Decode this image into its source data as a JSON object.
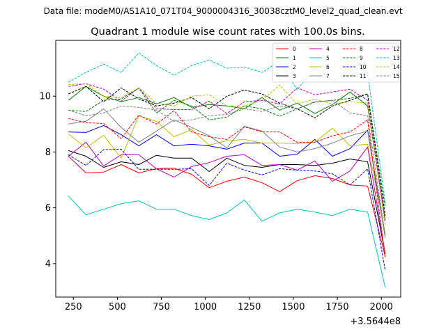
{
  "figure": {
    "suptitle": "Data file: modeM0/AS1A10_071T04_9000004316_30038cztM0_level2_quad_clean.evt",
    "title": "Quadrant 1 module wise count rates with 100.0s bins.",
    "x_offset_label": "+3.5644e8"
  },
  "chart_data": {
    "type": "line",
    "title": "Quadrant 1 module wise count rates with 100.0s bins.",
    "xlabel": "",
    "ylabel": "",
    "xlim": [
      150,
      2110
    ],
    "ylim": [
      2.8,
      12.0
    ],
    "x_ticks": [
      250,
      500,
      750,
      1000,
      1250,
      1500,
      1750,
      2000
    ],
    "x_tick_labels": [
      "250",
      "500",
      "750",
      "1000",
      "1250",
      "1500",
      "1750",
      "2000"
    ],
    "y_ticks": [
      4,
      6,
      8,
      10
    ],
    "y_tick_labels": [
      "4",
      "6",
      "8",
      "10"
    ],
    "grid": false,
    "legend_position": "top-right",
    "x": [
      222,
      322,
      422,
      522,
      622,
      722,
      822,
      922,
      1022,
      1122,
      1222,
      1322,
      1422,
      1522,
      1622,
      1722,
      1822,
      1922,
      2022
    ],
    "series": [
      {
        "name": "0",
        "color": "#ff0000",
        "dash": "solid",
        "values": [
          7.85,
          7.25,
          7.28,
          7.55,
          7.25,
          7.4,
          7.42,
          7.2,
          6.72,
          6.95,
          7.1,
          6.9,
          6.58,
          6.97,
          7.15,
          7.05,
          6.82,
          6.78,
          4.25
        ]
      },
      {
        "name": "1",
        "color": "#008000",
        "dash": "solid",
        "values": [
          9.85,
          10.35,
          10.0,
          9.8,
          9.95,
          9.72,
          9.95,
          9.6,
          9.7,
          9.65,
          9.55,
          9.95,
          9.5,
          9.75,
          9.38,
          9.7,
          10.15,
          9.65,
          5.55
        ]
      },
      {
        "name": "2",
        "color": "#0000ff",
        "dash": "solid",
        "values": [
          8.72,
          8.7,
          8.95,
          8.62,
          8.22,
          8.62,
          8.22,
          8.28,
          8.22,
          8.1,
          8.32,
          8.32,
          7.85,
          7.92,
          8.45,
          7.85,
          8.12,
          8.78,
          5.0
        ]
      },
      {
        "name": "3",
        "color": "#000000",
        "dash": "solid",
        "values": [
          8.05,
          7.85,
          7.45,
          7.65,
          7.55,
          7.88,
          7.78,
          7.78,
          7.3,
          7.78,
          7.52,
          7.45,
          7.55,
          7.55,
          7.52,
          7.6,
          7.75,
          7.65,
          4.35
        ]
      },
      {
        "name": "4",
        "color": "#bf00bf",
        "dash": "solid",
        "values": [
          7.85,
          8.35,
          7.5,
          7.9,
          7.9,
          7.4,
          7.1,
          7.48,
          7.62,
          7.85,
          7.9,
          7.52,
          7.55,
          7.35,
          7.68,
          6.95,
          7.32,
          8.18,
          4.35
        ]
      },
      {
        "name": "5",
        "color": "#00bfbf",
        "dash": "solid",
        "values": [
          6.42,
          5.75,
          5.95,
          6.15,
          6.25,
          5.95,
          5.95,
          5.72,
          5.58,
          5.82,
          6.28,
          5.52,
          5.82,
          5.95,
          5.85,
          5.72,
          5.95,
          5.85,
          3.15
        ]
      },
      {
        "name": "6",
        "color": "#bfbf00",
        "dash": "solid",
        "values": [
          8.65,
          8.15,
          8.6,
          7.78,
          9.3,
          9.1,
          8.55,
          8.8,
          8.25,
          8.4,
          8.45,
          8.32,
          8.32,
          8.3,
          8.35,
          8.85,
          8.22,
          8.28,
          5.1
        ]
      },
      {
        "name": "7",
        "color": "#808080",
        "dash": "solid",
        "values": [
          9.0,
          9.1,
          9.55,
          8.88,
          8.35,
          8.75,
          9.15,
          8.88,
          8.58,
          8.15,
          8.92,
          8.75,
          8.18,
          8.0,
          8.12,
          8.32,
          8.58,
          8.75,
          4.92
        ]
      },
      {
        "name": "8",
        "color": "#ff0000",
        "dash": "dashed",
        "values": [
          9.2,
          9.05,
          9.02,
          8.48,
          9.32,
          9.0,
          9.48,
          8.72,
          8.55,
          8.45,
          8.9,
          8.72,
          8.72,
          8.35,
          8.35,
          8.58,
          8.72,
          9.15,
          4.2
        ]
      },
      {
        "name": "9",
        "color": "#008000",
        "dash": "dashed",
        "values": [
          9.5,
          9.45,
          9.85,
          9.9,
          10.28,
          9.4,
          9.85,
          9.65,
          9.15,
          9.25,
          9.65,
          9.55,
          9.28,
          9.55,
          9.78,
          9.85,
          9.92,
          10.08,
          6.0
        ]
      },
      {
        "name": "10",
        "color": "#0000ff",
        "dash": "dashed",
        "values": [
          7.9,
          7.52,
          8.08,
          8.1,
          7.38,
          7.38,
          7.38,
          7.4,
          6.8,
          7.6,
          7.35,
          7.18,
          7.4,
          7.35,
          7.32,
          7.22,
          6.82,
          7.4,
          3.75
        ]
      },
      {
        "name": "11",
        "color": "#000000",
        "dash": "dashed",
        "values": [
          10.08,
          10.35,
          9.8,
          10.3,
          9.9,
          9.65,
          9.75,
          9.95,
          9.55,
          10.0,
          10.22,
          10.08,
          9.75,
          9.55,
          9.22,
          9.65,
          9.85,
          10.08,
          5.72
        ]
      },
      {
        "name": "12",
        "color": "#bf00bf",
        "dash": "dashed",
        "values": [
          10.35,
          10.45,
          10.25,
          9.82,
          10.3,
          9.55,
          9.52,
          9.52,
          9.82,
          9.38,
          9.8,
          9.85,
          9.72,
          10.3,
          10.05,
          10.15,
          10.25,
          9.85,
          5.5
        ]
      },
      {
        "name": "13",
        "color": "#00bfbf",
        "dash": "dashed",
        "values": [
          10.5,
          10.85,
          11.15,
          10.85,
          11.55,
          11.1,
          10.75,
          11.1,
          11.3,
          11.0,
          11.05,
          10.85,
          11.25,
          10.22,
          11.05,
          10.55,
          10.78,
          10.85,
          6.15
        ]
      },
      {
        "name": "14",
        "color": "#bfbf00",
        "dash": "dashed",
        "values": [
          10.42,
          10.45,
          10.0,
          9.95,
          10.3,
          9.75,
          9.65,
          10.0,
          10.05,
          9.65,
          9.65,
          9.85,
          10.4,
          9.72,
          9.9,
          9.72,
          9.8,
          9.75,
          5.35
        ]
      },
      {
        "name": "15",
        "color": "#808080",
        "dash": "dashed",
        "values": [
          9.5,
          9.3,
          9.4,
          9.65,
          9.6,
          9.5,
          9.1,
          9.15,
          9.3,
          9.35,
          9.55,
          9.45,
          9.65,
          9.55,
          9.8,
          9.85,
          9.4,
          9.3,
          5.0
        ]
      }
    ]
  }
}
